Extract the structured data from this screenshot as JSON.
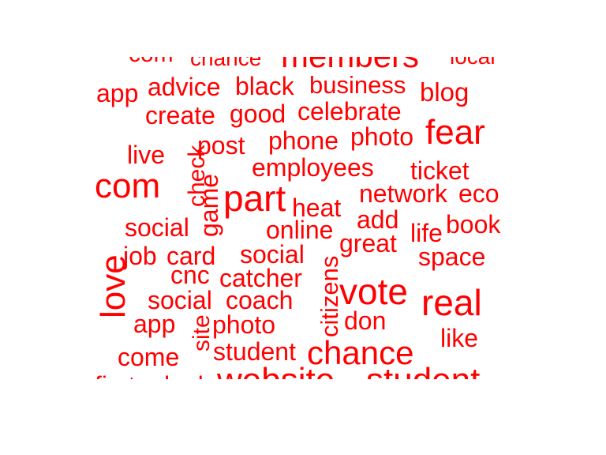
{
  "colors": {
    "word": "#ff0000",
    "background": "#ffffff"
  },
  "words": [
    {
      "text": "com"
    },
    {
      "text": "chance"
    },
    {
      "text": "members"
    },
    {
      "text": "local"
    },
    {
      "text": "app"
    },
    {
      "text": "advice"
    },
    {
      "text": "black"
    },
    {
      "text": "business"
    },
    {
      "text": "blog"
    },
    {
      "text": "create"
    },
    {
      "text": "good"
    },
    {
      "text": "celebrate"
    },
    {
      "text": "live"
    },
    {
      "text": "check"
    },
    {
      "text": "post"
    },
    {
      "text": "phone"
    },
    {
      "text": "photo"
    },
    {
      "text": "fear"
    },
    {
      "text": "employees"
    },
    {
      "text": "ticket"
    },
    {
      "text": "com"
    },
    {
      "text": "game"
    },
    {
      "text": "part"
    },
    {
      "text": "heat"
    },
    {
      "text": "network"
    },
    {
      "text": "eco"
    },
    {
      "text": "social"
    },
    {
      "text": "online"
    },
    {
      "text": "add"
    },
    {
      "text": "life"
    },
    {
      "text": "book"
    },
    {
      "text": "great"
    },
    {
      "text": "job"
    },
    {
      "text": "card"
    },
    {
      "text": "social"
    },
    {
      "text": "space"
    },
    {
      "text": "love"
    },
    {
      "text": "cnc"
    },
    {
      "text": "catcher"
    },
    {
      "text": "citizens"
    },
    {
      "text": "social"
    },
    {
      "text": "coach"
    },
    {
      "text": "vote"
    },
    {
      "text": "real"
    },
    {
      "text": "app"
    },
    {
      "text": "site"
    },
    {
      "text": "photo"
    },
    {
      "text": "don"
    },
    {
      "text": "like"
    },
    {
      "text": "come"
    },
    {
      "text": "student"
    },
    {
      "text": "chance"
    },
    {
      "text": "first"
    },
    {
      "text": "look"
    },
    {
      "text": "website"
    },
    {
      "text": "student"
    }
  ]
}
